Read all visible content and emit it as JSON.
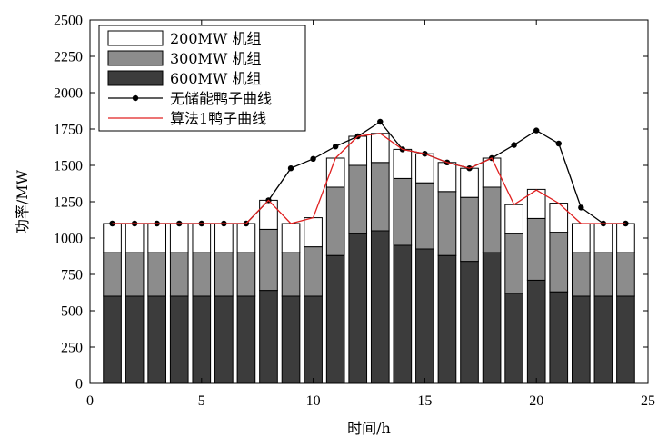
{
  "chart_data": {
    "type": "bar",
    "stacked": true,
    "x": [
      1,
      2,
      3,
      4,
      5,
      6,
      7,
      8,
      9,
      10,
      11,
      12,
      13,
      14,
      15,
      16,
      17,
      18,
      19,
      20,
      21,
      22,
      23,
      24
    ],
    "xlabel": "时间/h",
    "ylabel": "功率/MW",
    "xlim": [
      0,
      25
    ],
    "ylim": [
      0,
      2500
    ],
    "xticks": [
      0,
      5,
      10,
      15,
      20,
      25
    ],
    "yticks": [
      0,
      250,
      500,
      750,
      1000,
      1250,
      1500,
      1750,
      2000,
      2250,
      2500
    ],
    "grid": false,
    "legend_position": "top-left",
    "series": [
      {
        "name": "600MW 机组",
        "kind": "bar",
        "color": "#3c3c3c",
        "values": [
          600,
          600,
          600,
          600,
          600,
          600,
          600,
          640,
          600,
          600,
          880,
          1030,
          1050,
          950,
          925,
          880,
          840,
          900,
          620,
          710,
          630,
          600,
          600,
          600
        ]
      },
      {
        "name": "300MW 机组",
        "kind": "bar",
        "color": "#8c8c8c",
        "values": [
          300,
          300,
          300,
          300,
          300,
          300,
          300,
          420,
          300,
          340,
          470,
          470,
          470,
          460,
          455,
          440,
          440,
          450,
          410,
          425,
          410,
          300,
          300,
          300
        ]
      },
      {
        "name": "200MW 机组",
        "kind": "bar",
        "color": "#ffffff",
        "values": [
          200,
          200,
          200,
          200,
          200,
          200,
          200,
          200,
          200,
          200,
          200,
          200,
          200,
          200,
          200,
          200,
          200,
          200,
          200,
          200,
          200,
          200,
          200,
          200
        ]
      },
      {
        "name": "无储能鸭子曲线",
        "kind": "line",
        "color": "#000000",
        "marker": "circle",
        "values": [
          1100,
          1100,
          1100,
          1100,
          1100,
          1100,
          1100,
          1260,
          1480,
          1545,
          1630,
          1700,
          1800,
          1610,
          1580,
          1520,
          1480,
          1550,
          1640,
          1740,
          1650,
          1210,
          1100,
          1100
        ]
      },
      {
        "name": "算法1鸭子曲线",
        "kind": "line",
        "color": "#e02020",
        "marker": "none",
        "values": [
          1100,
          1100,
          1100,
          1100,
          1100,
          1100,
          1100,
          1260,
          1100,
          1140,
          1550,
          1700,
          1720,
          1610,
          1580,
          1520,
          1480,
          1550,
          1230,
          1330,
          1240,
          1100,
          1100,
          1100
        ]
      }
    ]
  }
}
